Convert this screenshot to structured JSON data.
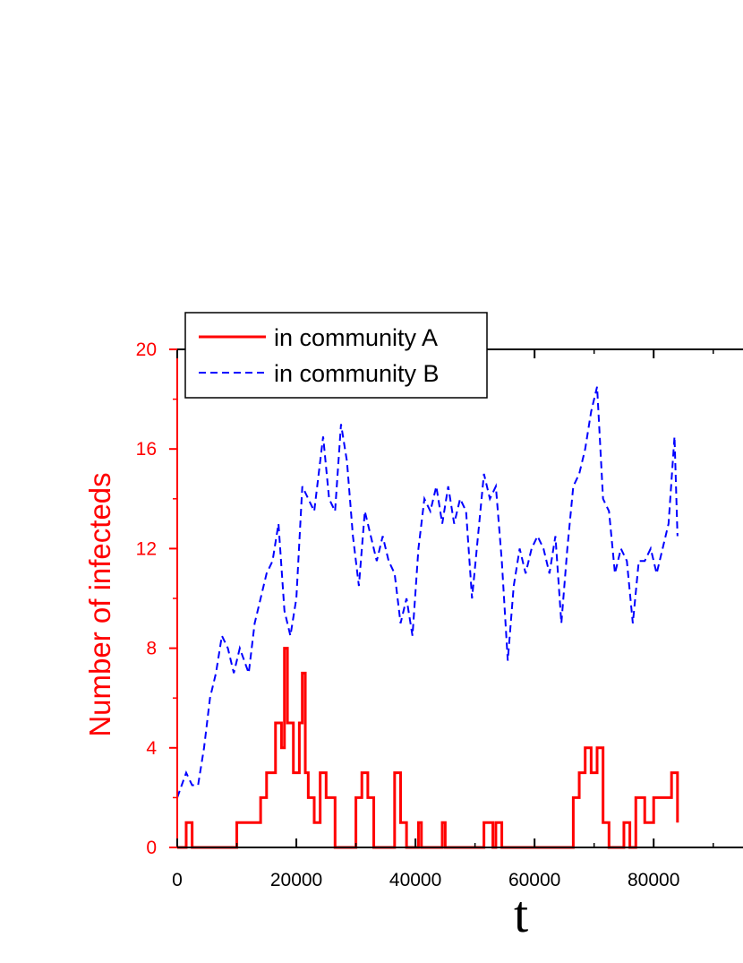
{
  "chart_data": {
    "type": "line",
    "xlabel": "t",
    "ylabel": "Number of infecteds",
    "xlim": [
      0,
      95000
    ],
    "ylim": [
      0,
      20
    ],
    "x_ticks": [
      "0",
      "20000",
      "40000",
      "60000",
      "80000"
    ],
    "y_ticks": [
      "0",
      "4",
      "8",
      "12",
      "16",
      "20"
    ],
    "legend_position": "top-left",
    "colors": {
      "axis_y": "#ff0000",
      "series_a": "#ff0000",
      "series_b": "#0000ff"
    },
    "series": [
      {
        "name": "in community A",
        "style": "solid",
        "x": [
          0,
          1500,
          2500,
          10000,
          12000,
          14000,
          15000,
          16500,
          17500,
          18000,
          18500,
          19500,
          20500,
          21000,
          21500,
          22000,
          23000,
          24000,
          25000,
          26500,
          30000,
          31000,
          32000,
          33000,
          36500,
          37500,
          38500,
          40500,
          41000,
          44500,
          45000,
          46000,
          51500,
          53000,
          53500,
          54500,
          66500,
          67500,
          68500,
          69500,
          70500,
          71500,
          72500,
          73000,
          75000,
          76000,
          77000,
          78500,
          80000,
          82000,
          83000,
          84000
        ],
        "y": [
          0,
          1,
          0,
          1,
          1,
          2,
          3,
          5,
          4,
          8,
          5,
          3,
          5,
          7,
          3,
          2,
          1,
          3,
          2,
          0,
          2,
          3,
          2,
          0,
          3,
          1,
          0,
          1,
          0,
          1,
          0,
          0,
          1,
          0,
          1,
          0,
          2,
          3,
          4,
          3,
          4,
          1,
          0,
          0,
          1,
          0,
          2,
          1,
          2,
          2,
          3,
          1
        ]
      },
      {
        "name": "in community B",
        "style": "dashed",
        "x": [
          0,
          1500,
          2500,
          3500,
          4500,
          5500,
          6500,
          7500,
          8500,
          9500,
          10500,
          12000,
          13000,
          14000,
          15000,
          16000,
          17000,
          18000,
          19000,
          20000,
          21000,
          22000,
          23000,
          24500,
          25500,
          26500,
          27500,
          28500,
          29500,
          30500,
          31500,
          32500,
          33500,
          34500,
          35500,
          36500,
          37500,
          38500,
          39500,
          40500,
          41500,
          42500,
          43500,
          44500,
          45500,
          46500,
          47500,
          48500,
          49500,
          50500,
          51500,
          52500,
          53500,
          54500,
          55500,
          56500,
          57500,
          58500,
          59500,
          60500,
          61500,
          62500,
          63500,
          64500,
          65500,
          66500,
          67500,
          68500,
          69500,
          70500,
          71500,
          72500,
          73500,
          74500,
          75500,
          76500,
          77500,
          78500,
          79500,
          80500,
          81500,
          82500,
          83500,
          84000
        ],
        "y": [
          2,
          3,
          2.5,
          2.5,
          4,
          6,
          7,
          8.5,
          8,
          7,
          8,
          7,
          9,
          10,
          11,
          11.5,
          13,
          9.5,
          8.5,
          10,
          14.5,
          14,
          13.5,
          16.5,
          14,
          13.5,
          17,
          15.5,
          12.5,
          10.5,
          13.5,
          12.5,
          11.5,
          12.5,
          11.5,
          11,
          9,
          10,
          8.5,
          12,
          14,
          13.5,
          14.5,
          13,
          14.5,
          13,
          14,
          13.5,
          10,
          12.5,
          15,
          14,
          14.5,
          11.5,
          7.5,
          10.5,
          12,
          11,
          12,
          12.5,
          12,
          11,
          12.5,
          9,
          12,
          14.5,
          15,
          16,
          17.5,
          18.5,
          14,
          13.5,
          11,
          12,
          11.5,
          9,
          11.5,
          11.5,
          12,
          11,
          12,
          13,
          16.5,
          12.5
        ]
      }
    ]
  }
}
